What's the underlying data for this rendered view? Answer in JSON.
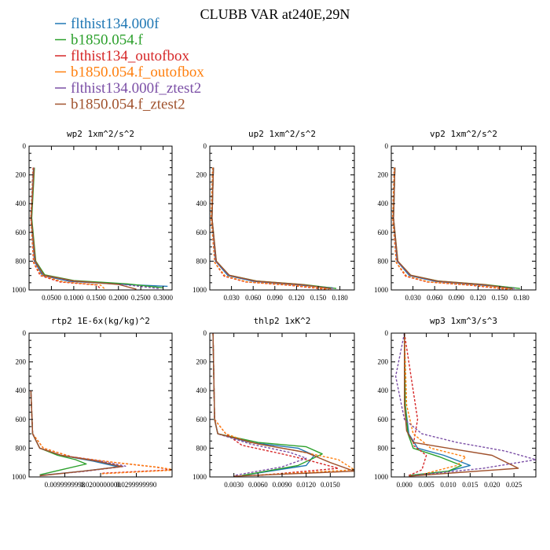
{
  "title": "CLUBB VAR at240E,29N",
  "legend": [
    {
      "label": "flthist134.000f",
      "color": "#1f77b4"
    },
    {
      "label": "b1850.054.f",
      "color": "#2ca02c"
    },
    {
      "label": "flthist134_outofbox",
      "color": "#d62728"
    },
    {
      "label": "b1850.054.f_outofbox",
      "color": "#ff7f0e"
    },
    {
      "label": "flthist134.000f_ztest2",
      "color": "#7b4fa6"
    },
    {
      "label": "b1850.054.f_ztest2",
      "color": "#a0522d"
    }
  ],
  "chart_data": [
    {
      "type": "line",
      "title": "wp2   1xm^2/s^2",
      "xlim": [
        0,
        0.32
      ],
      "ylim": [
        1000,
        0
      ],
      "xticks": [
        0.05,
        0.1,
        0.15,
        0.2,
        0.25,
        0.3
      ],
      "xtick_labels": [
        "0.0500",
        "0.1000",
        "0.1500",
        "0.2000",
        "0.2500",
        "0.3000"
      ],
      "yticks": [
        0,
        200,
        400,
        600,
        800,
        1000
      ],
      "ytick_labels": [
        "0",
        "200",
        "400",
        "600",
        "800",
        "1000"
      ],
      "series": [
        {
          "name": "flthist134.000f",
          "x": [
            0.01,
            0.005,
            0.012,
            0.03,
            0.09,
            0.2,
            0.31
          ],
          "y": [
            150,
            500,
            800,
            900,
            940,
            960,
            975
          ]
        },
        {
          "name": "b1850.054.f",
          "x": [
            0.012,
            0.006,
            0.015,
            0.035,
            0.1,
            0.22,
            0.3
          ],
          "y": [
            150,
            500,
            800,
            895,
            935,
            958,
            985
          ]
        },
        {
          "name": "flthist134_outofbox",
          "x": [
            0.009,
            0.004,
            0.01,
            0.025,
            0.07,
            0.15,
            0.16
          ],
          "y": [
            150,
            500,
            810,
            900,
            945,
            965,
            990
          ]
        },
        {
          "name": "b1850.054.f_outofbox",
          "x": [
            0.009,
            0.004,
            0.011,
            0.027,
            0.075,
            0.16,
            0.17
          ],
          "y": [
            150,
            500,
            810,
            898,
            943,
            966,
            995
          ]
        },
        {
          "name": "flthist134.000f_ztest2",
          "x": [
            0.01,
            0.005,
            0.013,
            0.032,
            0.095,
            0.21,
            0.29
          ],
          "y": [
            150,
            500,
            800,
            898,
            938,
            962,
            990
          ]
        },
        {
          "name": "b1850.054.f_ztest2",
          "x": [
            0.011,
            0.005,
            0.014,
            0.033,
            0.1,
            0.2,
            0.24
          ],
          "y": [
            150,
            500,
            800,
            897,
            937,
            962,
            995
          ]
        }
      ]
    },
    {
      "type": "line",
      "title": "up2   1xm^2/s^2",
      "xlim": [
        0,
        0.2
      ],
      "ylim": [
        1000,
        0
      ],
      "xticks": [
        0.03,
        0.06,
        0.09,
        0.12,
        0.15,
        0.18
      ],
      "xtick_labels": [
        "0.030",
        "0.060",
        "0.090",
        "0.120",
        "0.150",
        "0.180"
      ],
      "yticks": [
        0,
        200,
        400,
        600,
        800,
        1000
      ],
      "ytick_labels": [
        "0",
        "200",
        "400",
        "600",
        "800",
        "1000"
      ],
      "series": [
        {
          "name": "flthist134.000f",
          "x": [
            0.005,
            0.003,
            0.008,
            0.025,
            0.06,
            0.12,
            0.17
          ],
          "y": [
            150,
            500,
            800,
            900,
            940,
            965,
            985
          ]
        },
        {
          "name": "b1850.054.f",
          "x": [
            0.005,
            0.003,
            0.009,
            0.027,
            0.065,
            0.13,
            0.175
          ],
          "y": [
            150,
            500,
            800,
            898,
            938,
            963,
            990
          ]
        },
        {
          "name": "flthist134_outofbox",
          "x": [
            0.004,
            0.002,
            0.007,
            0.02,
            0.05,
            0.11,
            0.16
          ],
          "y": [
            150,
            500,
            810,
            905,
            945,
            968,
            995
          ]
        },
        {
          "name": "b1850.054.f_outofbox",
          "x": [
            0.004,
            0.002,
            0.007,
            0.021,
            0.052,
            0.115,
            0.165
          ],
          "y": [
            150,
            500,
            810,
            903,
            944,
            967,
            995
          ]
        },
        {
          "name": "flthist134.000f_ztest2",
          "x": [
            0.005,
            0.003,
            0.008,
            0.026,
            0.062,
            0.125,
            0.172
          ],
          "y": [
            150,
            500,
            800,
            899,
            939,
            964,
            990
          ]
        },
        {
          "name": "b1850.054.f_ztest2",
          "x": [
            0.005,
            0.003,
            0.009,
            0.027,
            0.064,
            0.128,
            0.168
          ],
          "y": [
            150,
            500,
            800,
            898,
            938,
            963,
            992
          ]
        }
      ]
    },
    {
      "type": "line",
      "title": "vp2   1xm^2/s^2",
      "xlim": [
        0,
        0.2
      ],
      "ylim": [
        1000,
        0
      ],
      "xticks": [
        0.03,
        0.06,
        0.09,
        0.12,
        0.15,
        0.18
      ],
      "xtick_labels": [
        "0.030",
        "0.060",
        "0.090",
        "0.120",
        "0.150",
        "0.180"
      ],
      "yticks": [
        0,
        200,
        400,
        600,
        800,
        1000
      ],
      "ytick_labels": [
        "0",
        "200",
        "400",
        "600",
        "800",
        "1000"
      ],
      "series": [
        {
          "name": "flthist134.000f",
          "x": [
            0.005,
            0.003,
            0.008,
            0.025,
            0.06,
            0.12,
            0.17
          ],
          "y": [
            150,
            500,
            800,
            900,
            940,
            965,
            985
          ]
        },
        {
          "name": "b1850.054.f",
          "x": [
            0.005,
            0.003,
            0.009,
            0.027,
            0.065,
            0.13,
            0.178
          ],
          "y": [
            150,
            500,
            800,
            898,
            938,
            963,
            990
          ]
        },
        {
          "name": "flthist134_outofbox",
          "x": [
            0.004,
            0.002,
            0.007,
            0.02,
            0.05,
            0.11,
            0.16
          ],
          "y": [
            150,
            500,
            810,
            905,
            945,
            968,
            995
          ]
        },
        {
          "name": "b1850.054.f_outofbox",
          "x": [
            0.004,
            0.002,
            0.007,
            0.021,
            0.052,
            0.115,
            0.165
          ],
          "y": [
            150,
            500,
            810,
            903,
            944,
            967,
            995
          ]
        },
        {
          "name": "flthist134.000f_ztest2",
          "x": [
            0.005,
            0.003,
            0.008,
            0.026,
            0.062,
            0.125,
            0.172
          ],
          "y": [
            150,
            500,
            800,
            899,
            939,
            964,
            990
          ]
        },
        {
          "name": "b1850.054.f_ztest2",
          "x": [
            0.005,
            0.003,
            0.009,
            0.027,
            0.064,
            0.128,
            0.168
          ],
          "y": [
            150,
            500,
            800,
            898,
            938,
            963,
            992
          ]
        }
      ]
    },
    {
      "type": "line",
      "title": "rtp2   1E-6x(kg/kg)^2",
      "xlim": [
        0,
        0.04
      ],
      "ylim": [
        1000,
        0
      ],
      "xticks": [
        0.01,
        0.02,
        0.03
      ],
      "xtick_labels": [
        "0.0099999998",
        "0.0200000000",
        "0.0299999990"
      ],
      "yticks": [
        0,
        200,
        400,
        600,
        800,
        1000
      ],
      "ytick_labels": [
        "0",
        "200",
        "400",
        "600",
        "800",
        "1000"
      ],
      "series": [
        {
          "name": "flthist134.000f",
          "x": [
            0.0005,
            0.001,
            0.003,
            0.009,
            0.018,
            0.025,
            0.015,
            0.003
          ],
          "y": [
            400,
            700,
            800,
            850,
            890,
            930,
            960,
            990
          ]
        },
        {
          "name": "b1850.054.f",
          "x": [
            0.0005,
            0.001,
            0.003,
            0.008,
            0.013,
            0.016,
            0.009,
            0.003
          ],
          "y": [
            400,
            700,
            800,
            850,
            880,
            910,
            950,
            985
          ]
        },
        {
          "name": "flthist134_outofbox",
          "x": [
            0.0005,
            0.001,
            0.004,
            0.012,
            0.024,
            0.035,
            0.04,
            0.02
          ],
          "y": [
            400,
            700,
            800,
            860,
            900,
            930,
            950,
            975
          ]
        },
        {
          "name": "b1850.054.f_outofbox",
          "x": [
            0.0005,
            0.001,
            0.004,
            0.012,
            0.025,
            0.036,
            0.041,
            0.02
          ],
          "y": [
            400,
            700,
            800,
            862,
            902,
            932,
            952,
            978
          ]
        },
        {
          "name": "flthist134.000f_ztest2",
          "x": [
            0.0005,
            0.001,
            0.003,
            0.009,
            0.02,
            0.027,
            0.016,
            0.003
          ],
          "y": [
            400,
            700,
            800,
            850,
            890,
            925,
            960,
            990
          ]
        },
        {
          "name": "b1850.054.f_ztest2",
          "x": [
            0.0005,
            0.001,
            0.003,
            0.009,
            0.019,
            0.026,
            0.015,
            0.003
          ],
          "y": [
            400,
            700,
            800,
            850,
            890,
            928,
            960,
            992
          ]
        }
      ]
    },
    {
      "type": "line",
      "title": "thlp2   1xK^2",
      "xlim": [
        0,
        0.018
      ],
      "ylim": [
        1000,
        0
      ],
      "xticks": [
        0.003,
        0.006,
        0.009,
        0.012,
        0.015
      ],
      "xtick_labels": [
        "0.0030",
        "0.0060",
        "0.0090",
        "0.0120",
        "0.0150"
      ],
      "yticks": [
        0,
        200,
        400,
        600,
        800,
        1000
      ],
      "ytick_labels": [
        "0",
        "200",
        "400",
        "600",
        "800",
        "1000"
      ],
      "series": [
        {
          "name": "flthist134.000f",
          "x": [
            0.0004,
            0.0006,
            0.001,
            0.005,
            0.011,
            0.013,
            0.012,
            0.004
          ],
          "y": [
            0,
            600,
            700,
            760,
            800,
            850,
            920,
            990
          ]
        },
        {
          "name": "b1850.054.f",
          "x": [
            0.0004,
            0.0006,
            0.001,
            0.006,
            0.012,
            0.014,
            0.011,
            0.004
          ],
          "y": [
            0,
            600,
            700,
            760,
            790,
            840,
            920,
            990
          ]
        },
        {
          "name": "flthist134_outofbox",
          "x": [
            0.0004,
            0.0006,
            0.002,
            0.004,
            0.009,
            0.012,
            0.016,
            0.006
          ],
          "y": [
            0,
            600,
            700,
            780,
            840,
            880,
            940,
            990
          ]
        },
        {
          "name": "b1850.054.f_outofbox",
          "x": [
            0.0004,
            0.0006,
            0.002,
            0.005,
            0.011,
            0.016,
            0.018,
            0.005
          ],
          "y": [
            0,
            600,
            700,
            760,
            820,
            880,
            950,
            990
          ]
        },
        {
          "name": "flthist134.000f_ztest2",
          "x": [
            0.0004,
            0.0006,
            0.001,
            0.005,
            0.01,
            0.012,
            0.009,
            0.003
          ],
          "y": [
            0,
            600,
            700,
            770,
            830,
            870,
            930,
            990
          ]
        },
        {
          "name": "b1850.054.f_ztest2",
          "x": [
            0.0004,
            0.0006,
            0.001,
            0.006,
            0.012,
            0.015,
            0.018,
            0.003
          ],
          "y": [
            0,
            600,
            700,
            770,
            830,
            900,
            960,
            995
          ]
        }
      ]
    },
    {
      "type": "line",
      "title": "wp3   1xm^3/s^3",
      "xlim": [
        -0.003,
        0.03
      ],
      "ylim": [
        1000,
        0
      ],
      "xticks": [
        0.0,
        0.005,
        0.01,
        0.015,
        0.02,
        0.025
      ],
      "xtick_labels": [
        "0.000",
        "0.005",
        "0.010",
        "0.015",
        "0.020",
        "0.025"
      ],
      "yticks": [
        0,
        200,
        400,
        600,
        800,
        1000
      ],
      "ytick_labels": [
        "0",
        "200",
        "400",
        "600",
        "800",
        "1000"
      ],
      "series": [
        {
          "name": "flthist134.000f",
          "x": [
            0.0,
            0.0002,
            0.001,
            0.003,
            0.009,
            0.015,
            0.01,
            0.001
          ],
          "y": [
            0,
            500,
            700,
            800,
            850,
            920,
            960,
            990
          ]
        },
        {
          "name": "b1850.054.f",
          "x": [
            0.0,
            0.0002,
            0.0008,
            0.002,
            0.008,
            0.013,
            0.01,
            0.001
          ],
          "y": [
            0,
            500,
            700,
            800,
            860,
            920,
            960,
            990
          ]
        },
        {
          "name": "flthist134_outofbox",
          "x": [
            0.0,
            0.002,
            0.003,
            0.002,
            0.005,
            0.004,
            0.001
          ],
          "y": [
            0,
            400,
            600,
            780,
            850,
            950,
            990
          ]
        },
        {
          "name": "b1850.054.f_outofbox",
          "x": [
            0.0,
            0.0005,
            0.002,
            0.006,
            0.014,
            0.012,
            0.003
          ],
          "y": [
            0,
            500,
            700,
            800,
            860,
            920,
            990
          ]
        },
        {
          "name": "flthist134.000f_ztest2",
          "x": [
            0.0,
            -0.002,
            0.0,
            0.004,
            0.012,
            0.023,
            0.03,
            0.018,
            0.002
          ],
          "y": [
            0,
            300,
            600,
            700,
            760,
            820,
            880,
            940,
            990
          ]
        },
        {
          "name": "b1850.054.f_ztest2",
          "x": [
            0.0,
            0.0,
            0.0005,
            0.002,
            0.01,
            0.02,
            0.026,
            0.012,
            0.001
          ],
          "y": [
            0,
            500,
            680,
            760,
            800,
            850,
            940,
            970,
            995
          ]
        }
      ]
    }
  ]
}
